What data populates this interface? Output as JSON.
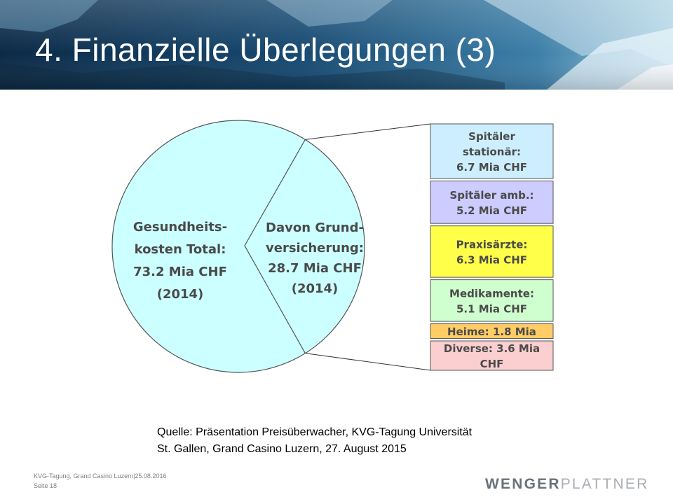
{
  "slide": {
    "title": "4. Finanzielle Überlegungen (3)",
    "source_lines": [
      "Quelle: Präsentation Preisüberwacher, KVG-Tagung Universität",
      "St. Gallen, Grand Casino Luzern, 27. August 2015"
    ],
    "footer": {
      "event": "KVG-Tagung, Grand Casino Luzern|25.08.2016",
      "page": "Seite 18"
    },
    "logo": {
      "part1": "WENGER",
      "part2": "PLATTNER"
    }
  },
  "diagram": {
    "total": {
      "lines": [
        "Gesundheits-",
        "kosten Total:",
        "73.2 Mia CHF",
        "(2014)"
      ],
      "value": 73.2,
      "unit": "Mia CHF",
      "year": 2014
    },
    "basic_insurance": {
      "lines": [
        "Davon Grund-",
        "versicherung:",
        "28.7 Mia CHF",
        "(2014)"
      ],
      "value": 28.7
    },
    "breakdown": [
      {
        "lines": [
          "Spitäler",
          "stationär:",
          "6.7 Mia CHF"
        ],
        "value": 6.7,
        "color": "#cdeefe"
      },
      {
        "lines": [
          "Spitäler amb.:",
          "5.2 Mia CHF"
        ],
        "value": 5.2,
        "color": "#ccccff"
      },
      {
        "lines": [
          "Praxisärzte:",
          "6.3 Mia CHF"
        ],
        "value": 6.3,
        "color": "#ffff4a"
      },
      {
        "lines": [
          "Medikamente:",
          "5.1 Mia CHF"
        ],
        "value": 5.1,
        "color": "#cfffcf"
      },
      {
        "lines": [
          "Heime: 1.8 Mia"
        ],
        "value": 1.8,
        "color": "#ffcc66"
      },
      {
        "lines": [
          "Diverse: 3.6 Mia",
          "CHF"
        ],
        "value": 3.6,
        "color": "#fbcfcf"
      }
    ],
    "colors": {
      "pie_fill": "#ccffff",
      "outline": "#555555",
      "text": "#4a4a4a",
      "connector": "#333333"
    }
  }
}
